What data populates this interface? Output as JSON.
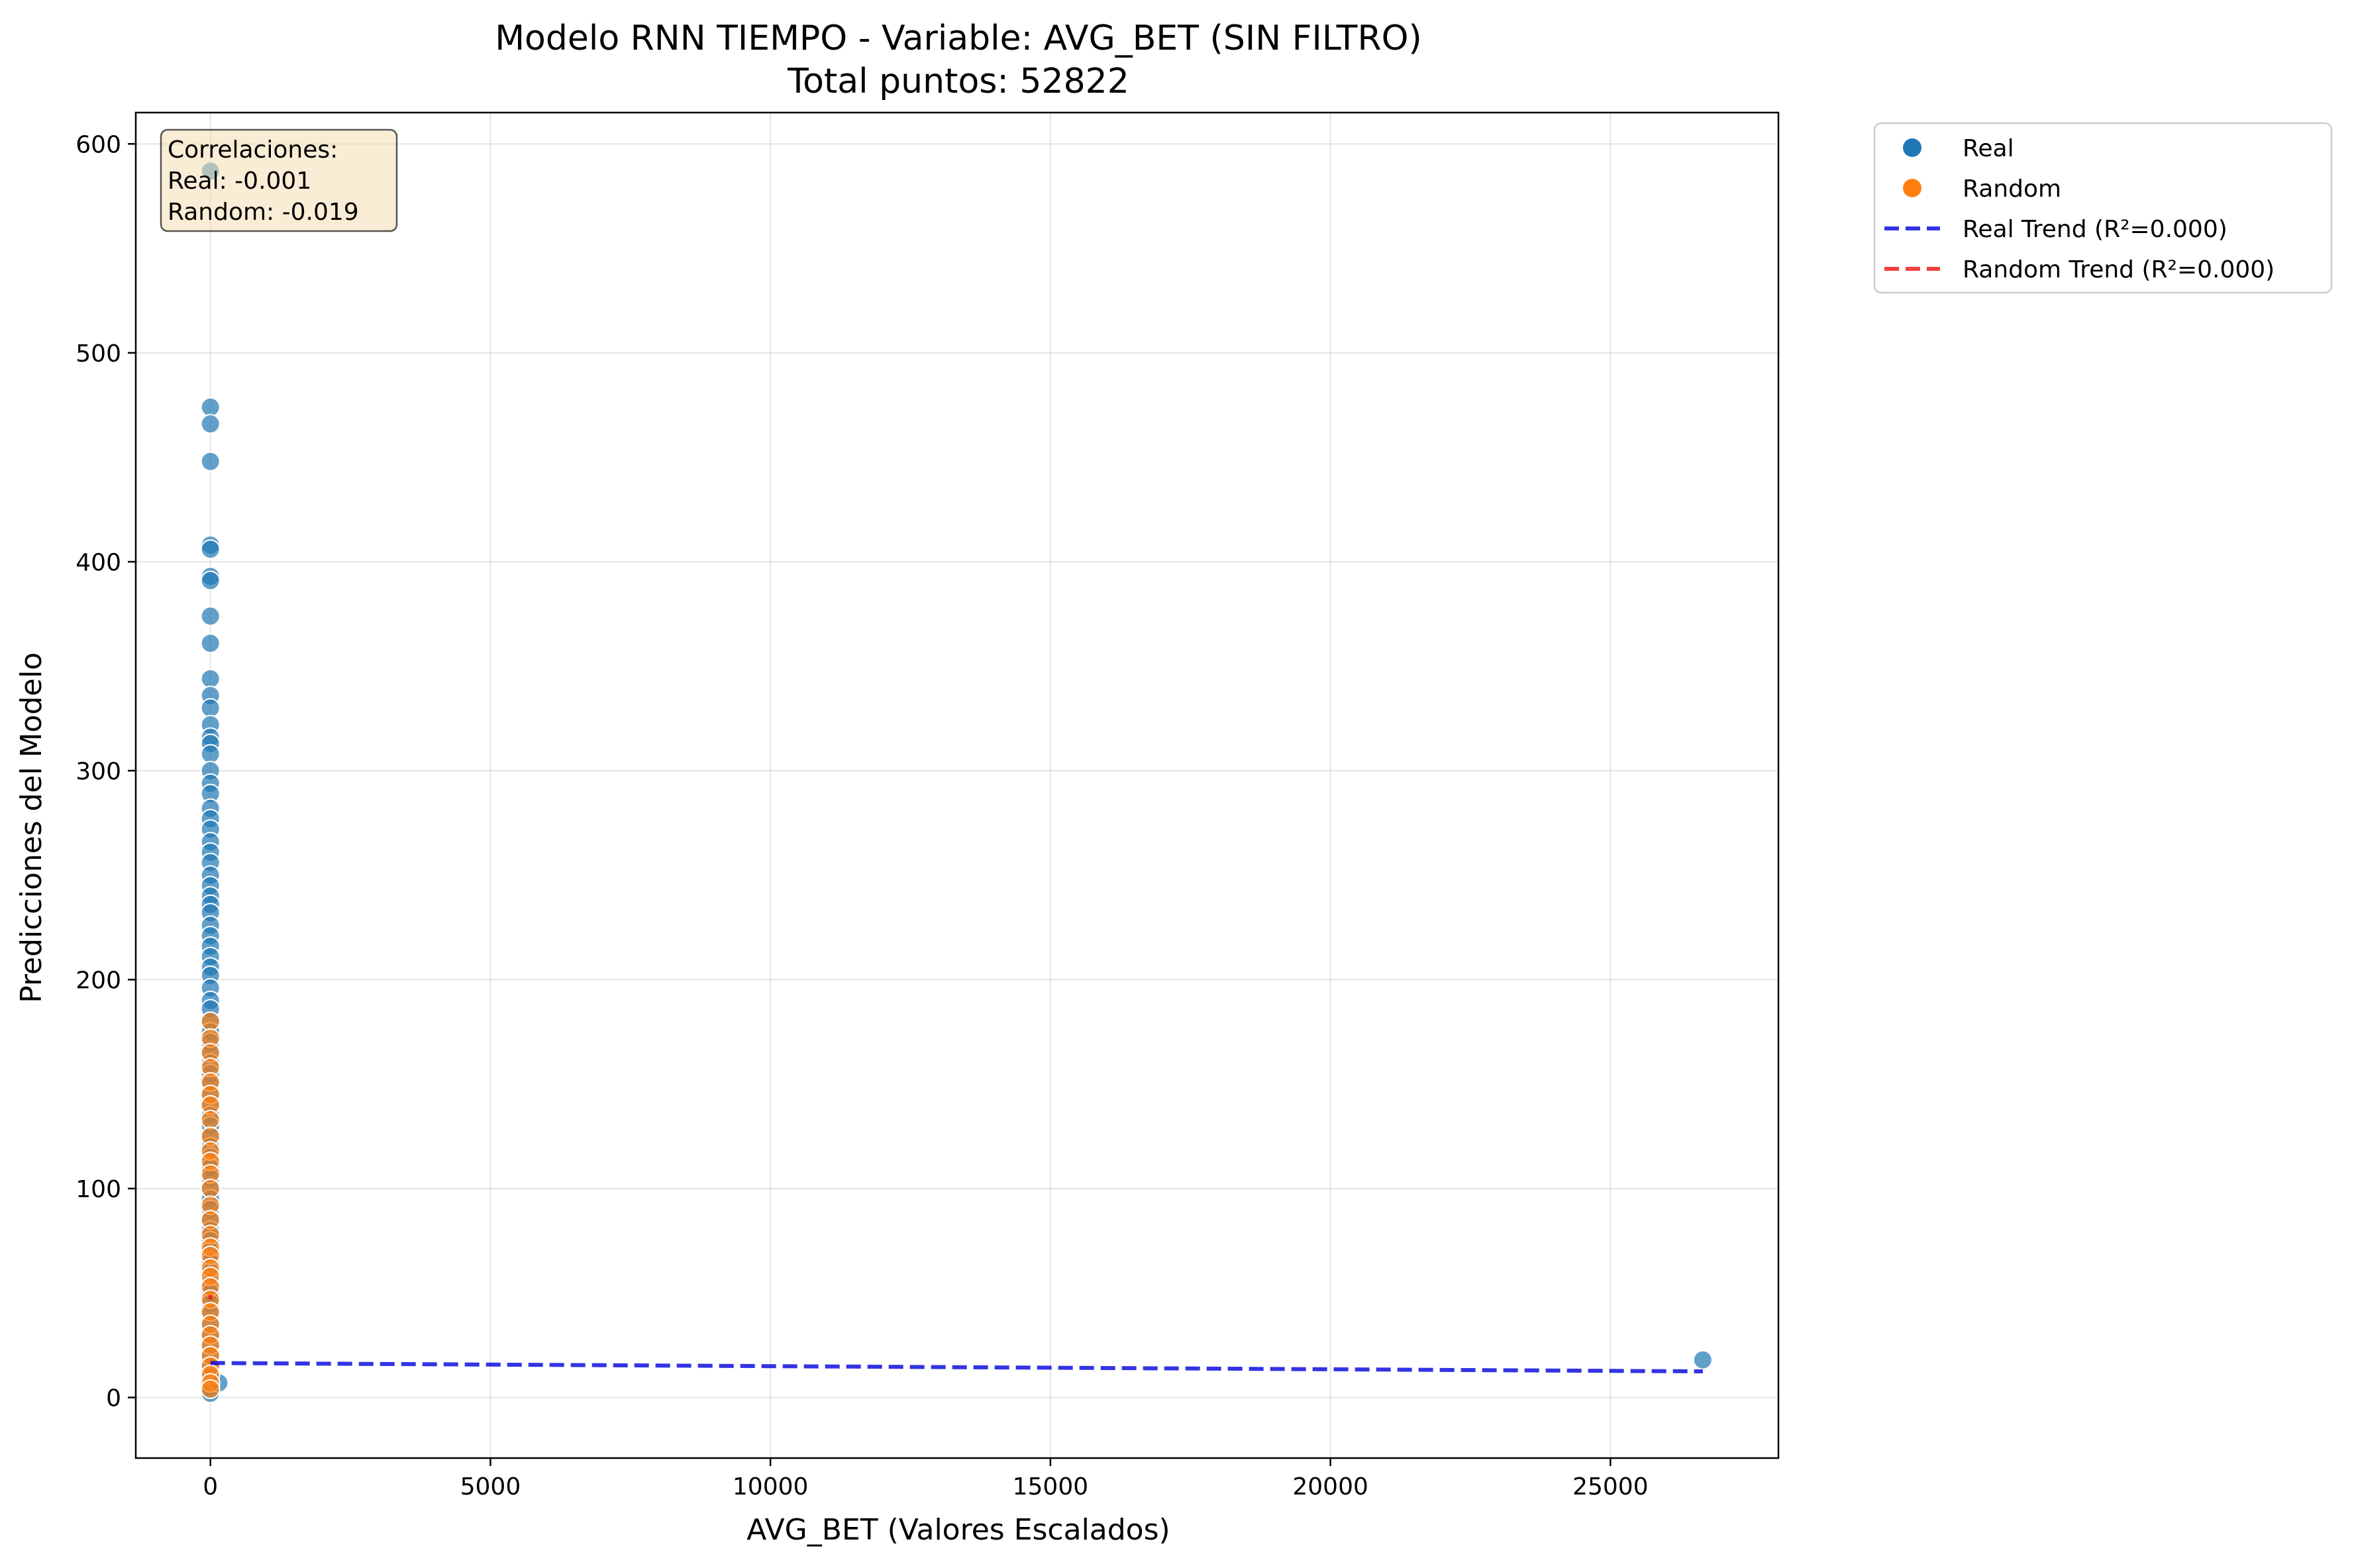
{
  "chart_data": {
    "type": "scatter",
    "title": "Modelo RNN TIEMPO - Variable: AVG_BET (SIN FILTRO)",
    "subtitle": "Total puntos: 52822",
    "xlabel": "AVG_BET (Valores Escalados)",
    "ylabel": "Predicciones del Modelo",
    "xlim": [
      -1333,
      28000
    ],
    "ylim": [
      -29,
      615
    ],
    "xticks": [
      0,
      5000,
      10000,
      15000,
      20000,
      25000
    ],
    "yticks": [
      0,
      100,
      200,
      300,
      400,
      500,
      600
    ],
    "grid": true,
    "legend_position": "outside-top-right",
    "annotation": {
      "lines": [
        "Correlaciones:",
        "Real: -0.001",
        "Random: -0.019"
      ],
      "position": "top-left"
    },
    "series": [
      {
        "name": "Real",
        "kind": "points",
        "color": "#1f77b4",
        "points": [
          [
            0,
            587
          ],
          [
            0,
            474
          ],
          [
            0,
            466
          ],
          [
            0,
            448
          ],
          [
            0,
            408
          ],
          [
            0,
            406
          ],
          [
            0,
            393
          ],
          [
            0,
            391
          ],
          [
            0,
            374
          ],
          [
            0,
            361
          ],
          [
            0,
            344
          ],
          [
            0,
            336
          ],
          [
            0,
            330
          ],
          [
            0,
            322
          ],
          [
            0,
            316
          ],
          [
            0,
            313
          ],
          [
            0,
            308
          ],
          [
            0,
            300
          ],
          [
            0,
            294
          ],
          [
            0,
            289
          ],
          [
            0,
            282
          ],
          [
            0,
            277
          ],
          [
            0,
            272
          ],
          [
            0,
            266
          ],
          [
            0,
            261
          ],
          [
            0,
            256
          ],
          [
            0,
            250
          ],
          [
            0,
            245
          ],
          [
            0,
            240
          ],
          [
            0,
            236
          ],
          [
            0,
            232
          ],
          [
            0,
            226
          ],
          [
            0,
            221
          ],
          [
            0,
            216
          ],
          [
            0,
            211
          ],
          [
            0,
            206
          ],
          [
            0,
            202
          ],
          [
            0,
            196
          ],
          [
            0,
            190
          ],
          [
            0,
            186
          ],
          [
            0,
            180
          ],
          [
            0,
            175
          ],
          [
            0,
            170
          ],
          [
            0,
            165
          ],
          [
            0,
            160
          ],
          [
            0,
            155
          ],
          [
            0,
            150
          ],
          [
            0,
            145
          ],
          [
            0,
            140
          ],
          [
            0,
            135
          ],
          [
            0,
            130
          ],
          [
            0,
            125
          ],
          [
            0,
            120
          ],
          [
            0,
            115
          ],
          [
            0,
            110
          ],
          [
            0,
            105
          ],
          [
            0,
            100
          ],
          [
            0,
            95
          ],
          [
            0,
            90
          ],
          [
            0,
            85
          ],
          [
            0,
            80
          ],
          [
            0,
            75
          ],
          [
            0,
            70
          ],
          [
            0,
            65
          ],
          [
            0,
            60
          ],
          [
            0,
            55
          ],
          [
            0,
            50
          ],
          [
            0,
            45
          ],
          [
            0,
            40
          ],
          [
            0,
            35
          ],
          [
            0,
            30
          ],
          [
            0,
            25
          ],
          [
            0,
            20
          ],
          [
            0,
            15
          ],
          [
            0,
            10
          ],
          [
            0,
            5
          ],
          [
            0,
            2
          ],
          [
            150,
            7
          ],
          [
            26650,
            18
          ]
        ]
      },
      {
        "name": "Random",
        "kind": "points",
        "color": "#ff7f0e",
        "points": [
          [
            0,
            180
          ],
          [
            0,
            172
          ],
          [
            0,
            165
          ],
          [
            0,
            158
          ],
          [
            0,
            151
          ],
          [
            0,
            145
          ],
          [
            0,
            140
          ],
          [
            0,
            133
          ],
          [
            0,
            125
          ],
          [
            0,
            118
          ],
          [
            0,
            113
          ],
          [
            0,
            107
          ],
          [
            0,
            100
          ],
          [
            0,
            92
          ],
          [
            0,
            85
          ],
          [
            0,
            78
          ],
          [
            0,
            72
          ],
          [
            0,
            68
          ],
          [
            0,
            62
          ],
          [
            0,
            58
          ],
          [
            0,
            53
          ],
          [
            0,
            47
          ],
          [
            0,
            41
          ],
          [
            0,
            35
          ],
          [
            0,
            30
          ],
          [
            0,
            25
          ],
          [
            0,
            20
          ],
          [
            0,
            15
          ],
          [
            0,
            11
          ],
          [
            0,
            7
          ],
          [
            0,
            4
          ]
        ]
      },
      {
        "name": "Real Trend (R²=0.000)",
        "kind": "line",
        "color": "#0000dd",
        "points": [
          [
            0,
            16.5
          ],
          [
            26650,
            12.5
          ]
        ]
      },
      {
        "name": "Random Trend (R²=0.000)",
        "kind": "line",
        "color": "#ee1111",
        "points": [
          [
            0,
            47
          ],
          [
            0,
            49
          ]
        ]
      }
    ]
  }
}
